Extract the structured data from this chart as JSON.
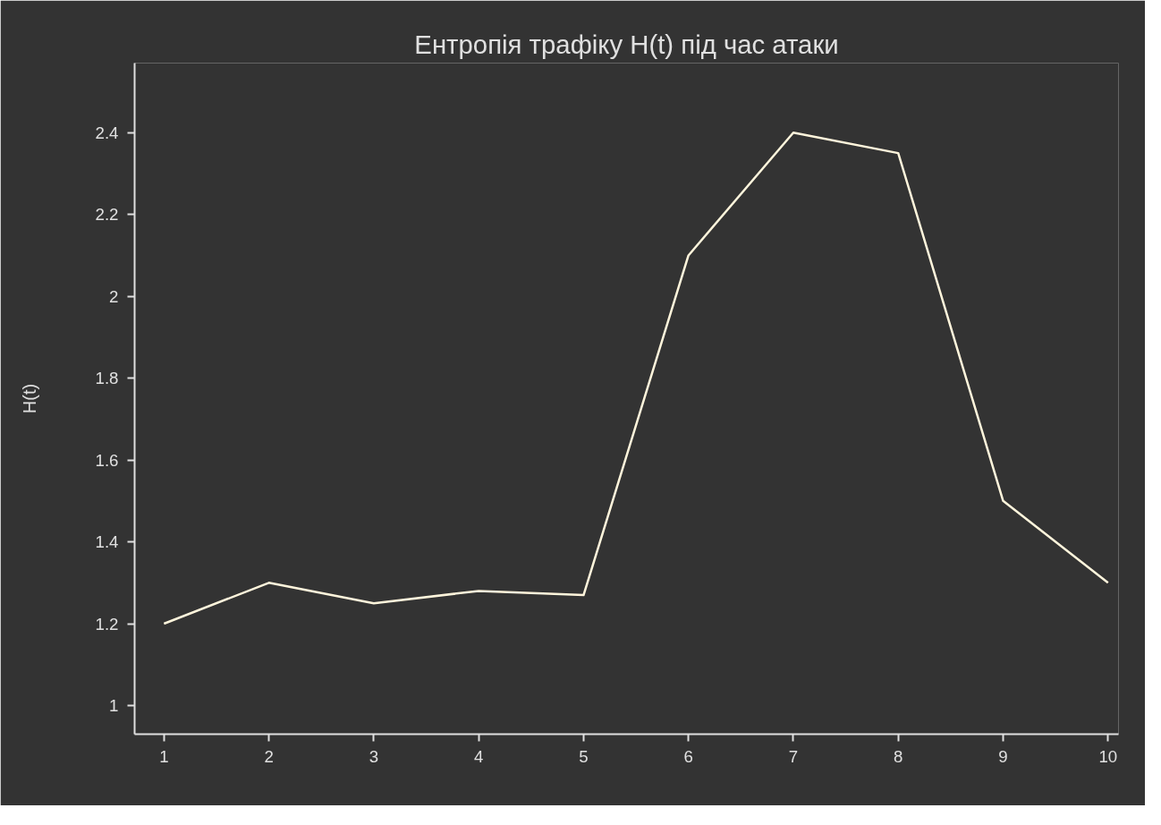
{
  "chart_data": {
    "type": "line",
    "title": "Ентропія трафіку H(t) під час атаки",
    "ylabel": "H(t)",
    "x": [
      1,
      2,
      3,
      4,
      5,
      6,
      7,
      8,
      9,
      10
    ],
    "series": [
      {
        "color": "#fff5dc",
        "values": [
          1.2,
          1.3,
          1.25,
          1.28,
          1.27,
          2.1,
          2.4,
          2.35,
          1.5,
          1.3
        ]
      }
    ],
    "xlim": [
      0.72,
      10.1
    ],
    "xticks": [
      1,
      2,
      3,
      4,
      5,
      6,
      7,
      8,
      9,
      10
    ],
    "ylim": [
      0.93,
      2.57
    ],
    "yticks": [
      {
        "value": 1,
        "label": "1"
      },
      1.2,
      1.4,
      1.6,
      1.8,
      {
        "value": 2,
        "label": "2"
      },
      2.2,
      2.4
    ],
    "grid": false,
    "marker": "none",
    "line_style": "solid"
  }
}
